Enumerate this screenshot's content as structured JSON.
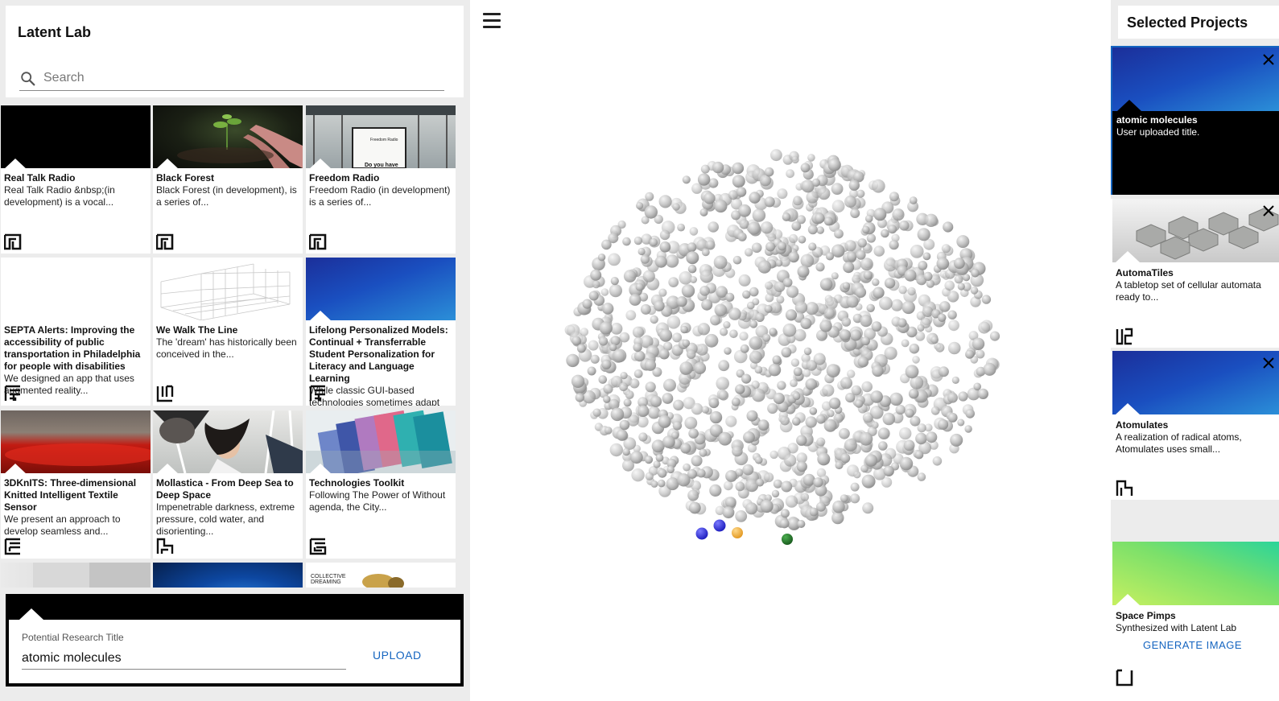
{
  "app": {
    "title": "Latent Lab"
  },
  "search": {
    "placeholder": "Search"
  },
  "projects": [
    {
      "title": "Real Talk Radio",
      "desc": "Real Talk Radio &nbsp;(in development) is a vocal...",
      "thumb": "black",
      "glyph": "mark-a"
    },
    {
      "title": "Black Forest",
      "desc": "Black Forest (in development), is a series of...",
      "thumb": "forest-photo",
      "glyph": "mark-a"
    },
    {
      "title": "Freedom Radio",
      "desc": "Freedom Radio (in development) is a series of...",
      "thumb": "sign-photo",
      "glyph": "mark-a",
      "thumb_text": [
        "Freedom Radio",
        "Do you have"
      ]
    },
    {
      "title": "SEPTA Alerts: Improving the accessibility of public transportation in Philadelphia for people with disabilities",
      "desc": "We designed an app that uses augmented reality...",
      "thumb": "white",
      "glyph": "mark-b"
    },
    {
      "title": "We Walk The Line",
      "desc": "The 'dream' has historically been conceived in the...",
      "thumb": "wireframe-grid",
      "glyph": "mark-c"
    },
    {
      "title": "Lifelong Personalized Models: Continual + Transferrable Student Personalization for Literacy and Language Learning",
      "desc": "While classic GUI-based technologies sometimes adapt",
      "thumb": "blue-gradient",
      "glyph": "mark-b"
    },
    {
      "title": "3DKnITS: Three-dimensional Knitted Intelligent Textile Sensor",
      "desc": "We present an approach to develop seamless and...",
      "thumb": "red-textile",
      "glyph": "mark-d"
    },
    {
      "title": "Mollastica - From Deep Sea to Deep Space",
      "desc": "Impenetrable darkness, extreme pressure, cold water, and disorienting...",
      "thumb": "lab-photo",
      "glyph": "mark-e"
    },
    {
      "title": "Technologies Toolkit",
      "desc": "Following The Power of Without agenda, the City...",
      "thumb": "cards-photo",
      "glyph": "mark-f"
    },
    {
      "title": "",
      "desc": "",
      "thumb": "grey-room",
      "glyph": ""
    },
    {
      "title": "",
      "desc": "",
      "thumb": "blue-light",
      "glyph": ""
    },
    {
      "title": "",
      "desc": "",
      "thumb": "collective-dreaming",
      "glyph": "",
      "thumb_text": [
        "COLLECTIVE",
        "DREAMING"
      ]
    }
  ],
  "upload": {
    "label": "Potential Research Title",
    "value": "atomic molecules",
    "button": "UPLOAD"
  },
  "menu": {
    "icon": "hamburger-icon"
  },
  "selected": {
    "heading": "Selected Projects",
    "items": [
      {
        "title": "atomic molecules",
        "desc": "User uploaded title.",
        "thumb": "blue-gradient",
        "dark": true
      },
      {
        "title": "AutomaTiles",
        "desc": "A tabletop set of cellular automata ready to...",
        "thumb": "tiles-photo",
        "glyph": "mark-g"
      },
      {
        "title": "Atomulates",
        "desc": "A realization of radical atoms, Atomulates uses small...",
        "thumb": "blue-gradient",
        "glyph": "mark-h"
      },
      {
        "title": "Space Pimps",
        "desc": "Synthesized with Latent Lab",
        "thumb": "green-gradient",
        "glyph": "mark-i",
        "action": "GENERATE IMAGE"
      }
    ]
  },
  "colors": {
    "accent": "#1565c0",
    "panel_bg": "#ececec",
    "highlight_blue": "#3b3be0",
    "highlight_orange": "#f0b24a",
    "highlight_green": "#2e7d32"
  }
}
